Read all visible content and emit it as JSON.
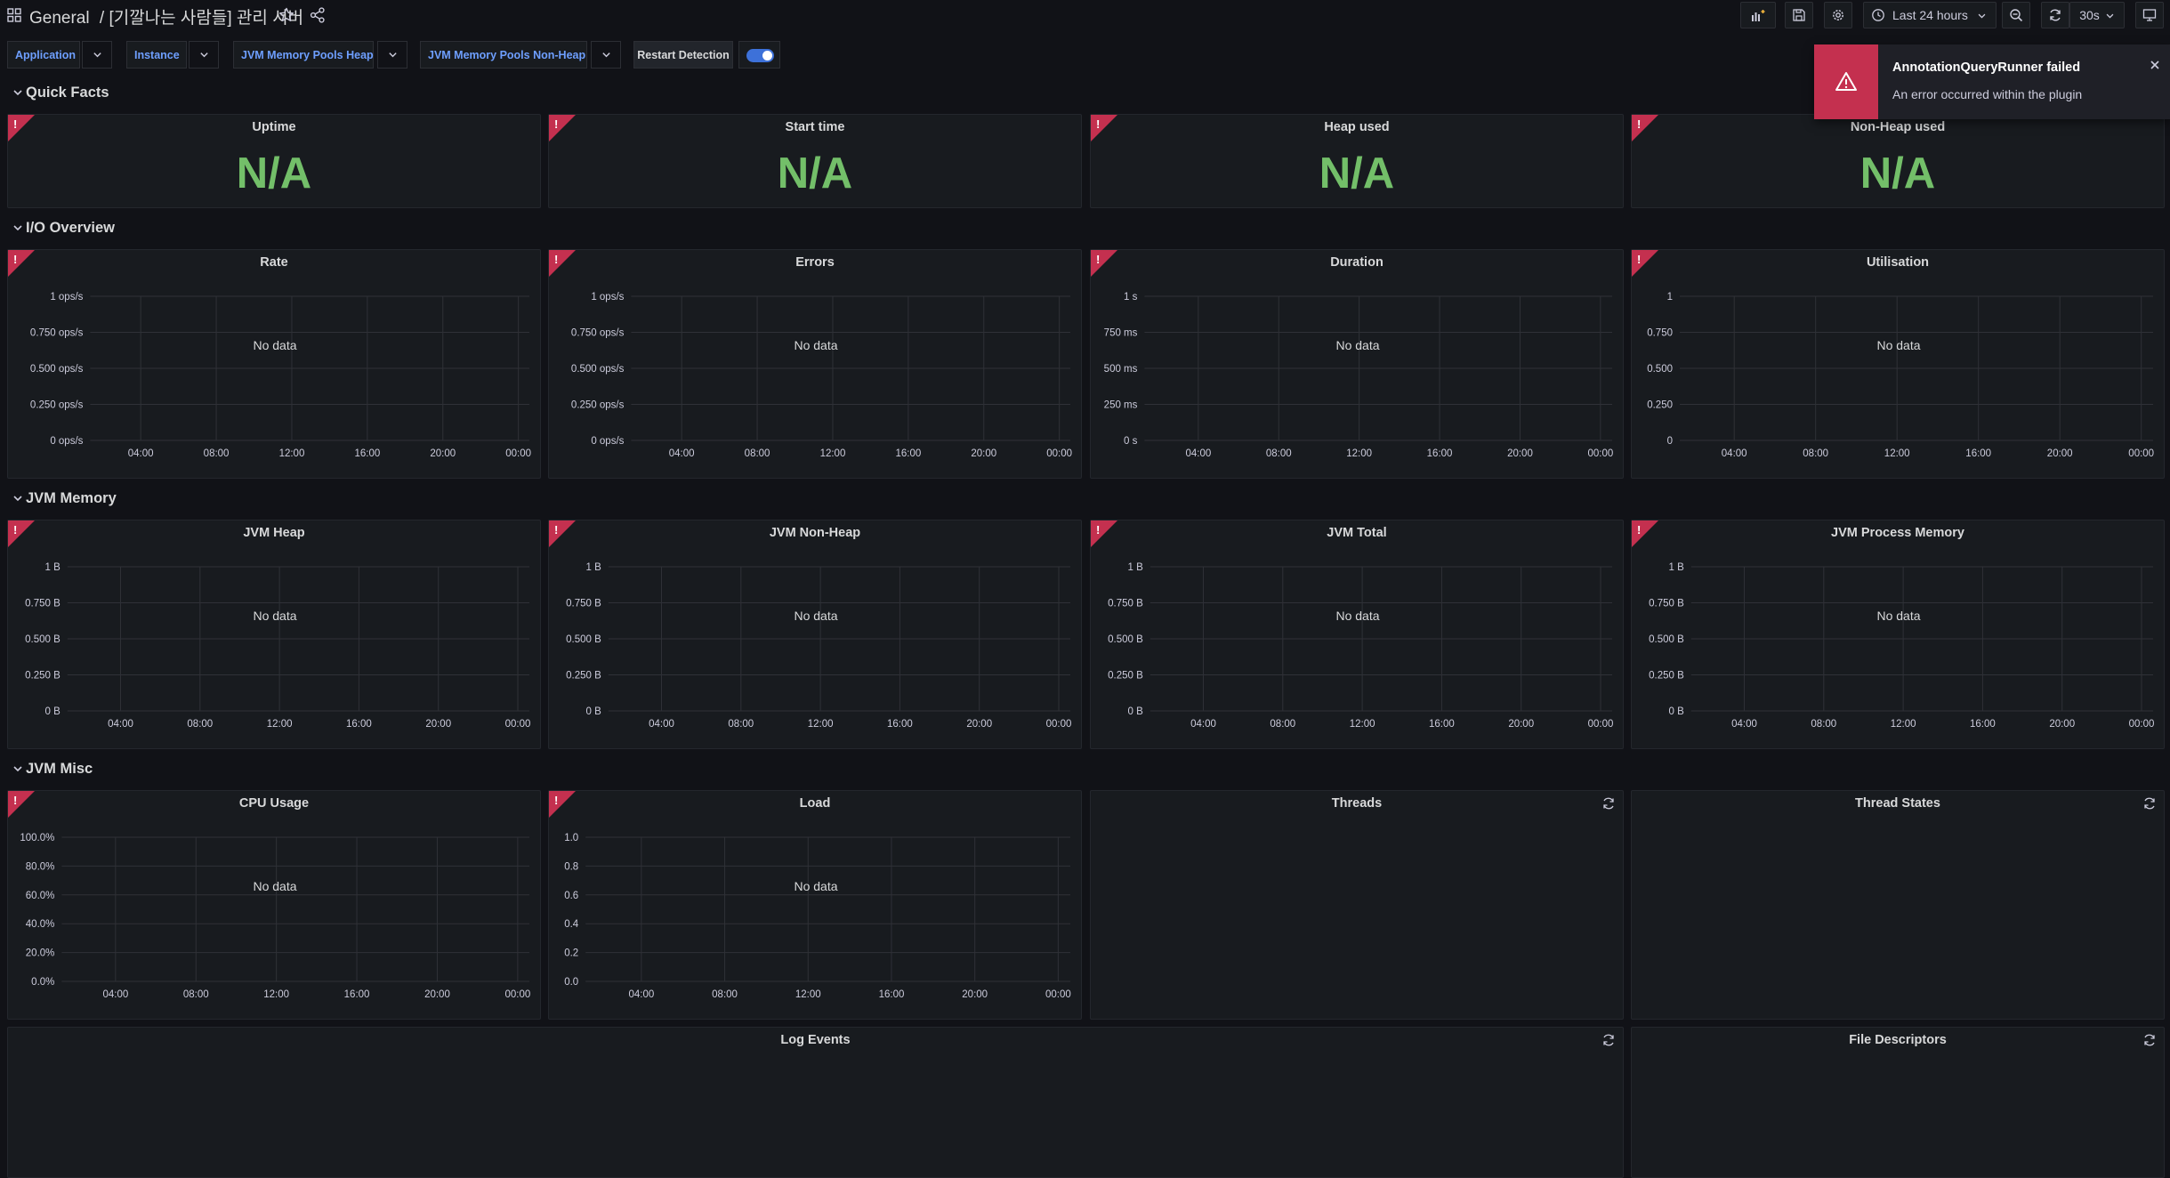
{
  "header": {
    "folder": "General",
    "separator": "/",
    "dashboard_title": "[기깔나는 사람들] 관리 서버",
    "time_range": "Last 24 hours",
    "refresh_interval": "30s"
  },
  "variables": [
    {
      "label": "Application"
    },
    {
      "label": "Instance"
    },
    {
      "label": "JVM Memory Pools Heap"
    },
    {
      "label": "JVM Memory Pools Non-Heap"
    }
  ],
  "restart_detection": {
    "label": "Restart Detection",
    "enabled": true
  },
  "rows": {
    "quick_facts": "Quick Facts",
    "io_overview": "I/O Overview",
    "jvm_memory": "JVM Memory",
    "jvm_misc": "JVM Misc"
  },
  "stats": [
    {
      "title": "Uptime",
      "value": "N/A"
    },
    {
      "title": "Start time",
      "value": "N/A"
    },
    {
      "title": "Heap used",
      "value": "N/A"
    },
    {
      "title": "Non-Heap used",
      "value": "N/A"
    }
  ],
  "x_ticks": [
    "04:00",
    "08:00",
    "12:00",
    "16:00",
    "20:00",
    "00:00"
  ],
  "no_data": "No data",
  "graph_panels": [
    {
      "title": "Rate",
      "y_ticks": [
        "1 ops/s",
        "0.750 ops/s",
        "0.500 ops/s",
        "0.250 ops/s",
        "0 ops/s"
      ]
    },
    {
      "title": "Errors",
      "y_ticks": [
        "1 ops/s",
        "0.750 ops/s",
        "0.500 ops/s",
        "0.250 ops/s",
        "0 ops/s"
      ]
    },
    {
      "title": "Duration",
      "y_ticks": [
        "1 s",
        "750 ms",
        "500 ms",
        "250 ms",
        "0 s"
      ]
    },
    {
      "title": "Utilisation",
      "y_ticks": [
        "1",
        "0.750",
        "0.500",
        "0.250",
        "0"
      ]
    },
    {
      "title": "JVM Heap",
      "y_ticks": [
        "1 B",
        "0.750 B",
        "0.500 B",
        "0.250 B",
        "0 B"
      ]
    },
    {
      "title": "JVM Non-Heap",
      "y_ticks": [
        "1 B",
        "0.750 B",
        "0.500 B",
        "0.250 B",
        "0 B"
      ]
    },
    {
      "title": "JVM Total",
      "y_ticks": [
        "1 B",
        "0.750 B",
        "0.500 B",
        "0.250 B",
        "0 B"
      ]
    },
    {
      "title": "JVM Process Memory",
      "y_ticks": [
        "1 B",
        "0.750 B",
        "0.500 B",
        "0.250 B",
        "0 B"
      ]
    },
    {
      "title": "CPU Usage",
      "y_ticks": [
        "100.0%",
        "80.0%",
        "60.0%",
        "40.0%",
        "20.0%",
        "0.0%"
      ]
    },
    {
      "title": "Load",
      "y_ticks": [
        "1.0",
        "0.8",
        "0.6",
        "0.4",
        "0.2",
        "0.0"
      ]
    }
  ],
  "empty_panels": [
    {
      "title": "Threads"
    },
    {
      "title": "Thread States"
    },
    {
      "title": "Log Events"
    },
    {
      "title": "File Descriptors"
    }
  ],
  "toast": {
    "title": "AnnotationQueryRunner failed",
    "message": "An error occurred within the plugin"
  },
  "colors": {
    "background": "#111217",
    "panel": "#181b1f",
    "stat_green": "#73bf69",
    "error_red": "#c4304f",
    "link_blue": "#6e9fff",
    "toggle_blue": "#3d71d9"
  }
}
